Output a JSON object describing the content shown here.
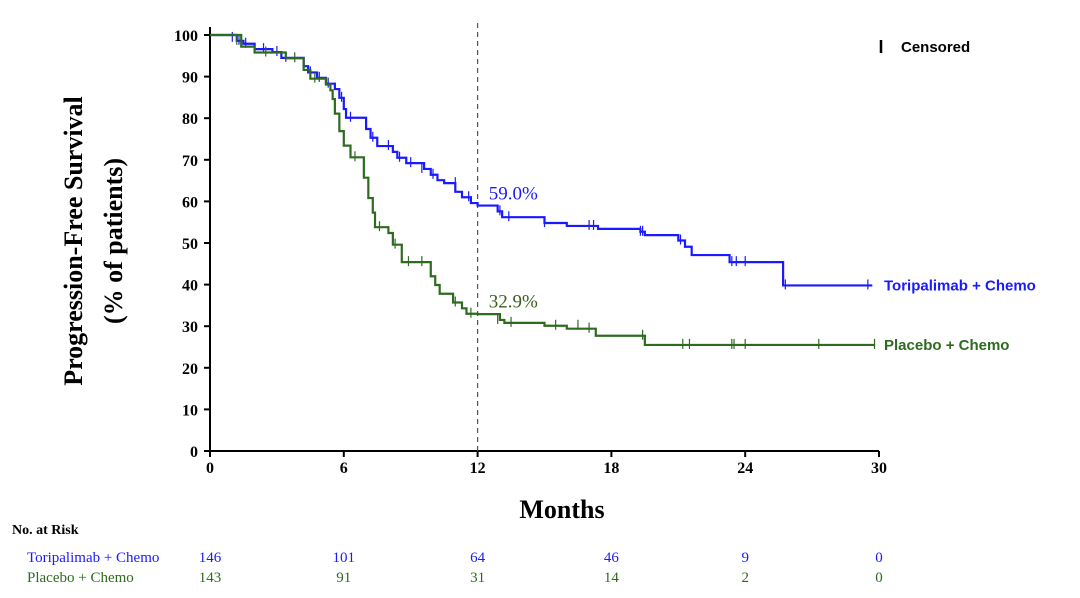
{
  "chart_data": {
    "type": "line",
    "title": "",
    "xlabel": "Months",
    "ylabel_line1": "Progression-Free Survival",
    "ylabel_line2": "(% of patients)",
    "xlim": [
      0,
      30
    ],
    "ylim": [
      0,
      100
    ],
    "xticks": [
      "0",
      "6",
      "12",
      "18",
      "24",
      "30"
    ],
    "yticks": [
      "0",
      "10",
      "20",
      "30",
      "40",
      "50",
      "60",
      "70",
      "80",
      "90",
      "100"
    ],
    "grid": false,
    "reference_line_x": 12,
    "legend": {
      "position": "top-right",
      "censor_mark": "I",
      "censor_label": "Censored"
    },
    "annotations": [
      {
        "text": "59.0%",
        "x": 12.5,
        "y": 60.5,
        "color": "#1a1aff"
      },
      {
        "text": "32.9%",
        "x": 12.5,
        "y": 34.5,
        "color": "#3a5e1e"
      }
    ],
    "series": [
      {
        "name": "Toripalimab + Chemo",
        "color": "#1a1aff",
        "steps": [
          [
            0,
            100
          ],
          [
            1.2,
            98.6
          ],
          [
            1.5,
            97.9
          ],
          [
            2.0,
            96.6
          ],
          [
            2.8,
            95.9
          ],
          [
            3.2,
            94.5
          ],
          [
            4.2,
            92.5
          ],
          [
            4.4,
            91.0
          ],
          [
            4.8,
            89.7
          ],
          [
            5.2,
            88.3
          ],
          [
            5.6,
            87.0
          ],
          [
            5.8,
            84.9
          ],
          [
            6.0,
            82.2
          ],
          [
            6.1,
            80.1
          ],
          [
            7.0,
            77.4
          ],
          [
            7.2,
            75.3
          ],
          [
            7.5,
            73.3
          ],
          [
            8.2,
            71.9
          ],
          [
            8.4,
            70.5
          ],
          [
            8.8,
            69.2
          ],
          [
            9.6,
            67.8
          ],
          [
            9.9,
            66.4
          ],
          [
            10.2,
            65.1
          ],
          [
            10.5,
            64.4
          ],
          [
            11.0,
            62.3
          ],
          [
            11.3,
            61.0
          ],
          [
            11.7,
            59.6
          ],
          [
            12.0,
            59.0
          ],
          [
            12.9,
            57.6
          ],
          [
            13.1,
            56.2
          ],
          [
            15.0,
            54.8
          ],
          [
            16.0,
            54.1
          ],
          [
            17.4,
            53.4
          ],
          [
            19.3,
            52.7
          ],
          [
            19.5,
            51.9
          ],
          [
            21.0,
            50.6
          ],
          [
            21.3,
            49.1
          ],
          [
            21.6,
            47.1
          ],
          [
            23.3,
            45.4
          ],
          [
            25.7,
            39.8
          ],
          [
            29.7,
            39.8
          ]
        ],
        "censored": [
          [
            1.0,
            99.3
          ],
          [
            1.3,
            98.6
          ],
          [
            1.6,
            97.9
          ],
          [
            2.4,
            96.6
          ],
          [
            3.0,
            95.9
          ],
          [
            3.4,
            94.5
          ],
          [
            4.5,
            91.0
          ],
          [
            4.9,
            89.7
          ],
          [
            5.3,
            88.3
          ],
          [
            5.9,
            84.9
          ],
          [
            6.3,
            80.1
          ],
          [
            7.3,
            75.3
          ],
          [
            8.0,
            73.3
          ],
          [
            8.5,
            70.5
          ],
          [
            9.0,
            69.2
          ],
          [
            9.5,
            67.8
          ],
          [
            10.0,
            66.4
          ],
          [
            11.0,
            64.4
          ],
          [
            11.6,
            61.0
          ],
          [
            13.0,
            57.6
          ],
          [
            13.4,
            56.2
          ],
          [
            15.0,
            54.8
          ],
          [
            17.0,
            54.1
          ],
          [
            17.2,
            54.1
          ],
          [
            19.3,
            52.7
          ],
          [
            19.4,
            52.7
          ],
          [
            21.1,
            50.6
          ],
          [
            23.4,
            45.4
          ],
          [
            23.6,
            45.4
          ],
          [
            24.0,
            45.4
          ],
          [
            25.8,
            39.8
          ],
          [
            29.5,
            39.8
          ]
        ],
        "risk": [
          "146",
          "101",
          "64",
          "46",
          "9",
          "0"
        ]
      },
      {
        "name": "Placebo + Chemo",
        "color": "#2e6b1f",
        "steps": [
          [
            0,
            100
          ],
          [
            1.4,
            97.2
          ],
          [
            2.0,
            95.8
          ],
          [
            3.4,
            94.4
          ],
          [
            4.2,
            91.6
          ],
          [
            4.5,
            89.5
          ],
          [
            5.2,
            88.1
          ],
          [
            5.4,
            86.7
          ],
          [
            5.5,
            84.6
          ],
          [
            5.6,
            81.1
          ],
          [
            5.8,
            76.9
          ],
          [
            6.0,
            73.4
          ],
          [
            6.3,
            70.6
          ],
          [
            6.9,
            65.7
          ],
          [
            7.1,
            60.8
          ],
          [
            7.3,
            57.3
          ],
          [
            7.4,
            53.8
          ],
          [
            8.0,
            52.4
          ],
          [
            8.2,
            49.6
          ],
          [
            8.6,
            45.4
          ],
          [
            9.0,
            45.4
          ],
          [
            9.9,
            42.0
          ],
          [
            10.1,
            39.9
          ],
          [
            10.3,
            37.8
          ],
          [
            10.9,
            35.7
          ],
          [
            11.3,
            34.3
          ],
          [
            11.5,
            33.0
          ],
          [
            12.0,
            32.9
          ],
          [
            13.0,
            31.5
          ],
          [
            13.2,
            30.8
          ],
          [
            15.0,
            30.1
          ],
          [
            16.0,
            29.4
          ],
          [
            17.3,
            27.7
          ],
          [
            19.5,
            25.5
          ],
          [
            29.8,
            25.5
          ]
        ],
        "censored": [
          [
            1.2,
            98.6
          ],
          [
            2.5,
            95.8
          ],
          [
            3.8,
            94.4
          ],
          [
            4.7,
            89.5
          ],
          [
            6.5,
            70.6
          ],
          [
            7.6,
            53.8
          ],
          [
            8.3,
            49.6
          ],
          [
            8.9,
            45.4
          ],
          [
            9.5,
            45.4
          ],
          [
            11.0,
            35.7
          ],
          [
            11.7,
            33.0
          ],
          [
            12.9,
            31.5
          ],
          [
            13.5,
            30.8
          ],
          [
            15.5,
            30.1
          ],
          [
            16.5,
            30.1
          ],
          [
            17.0,
            29.4
          ],
          [
            19.4,
            27.7
          ],
          [
            21.2,
            25.5
          ],
          [
            21.5,
            25.5
          ],
          [
            23.4,
            25.5
          ],
          [
            23.5,
            25.5
          ],
          [
            24.0,
            25.5
          ],
          [
            27.3,
            25.5
          ],
          [
            29.8,
            25.5
          ]
        ],
        "risk": [
          "143",
          "91",
          "31",
          "14",
          "2",
          "0"
        ]
      }
    ],
    "risk_table": {
      "title": "No. at Risk",
      "times": [
        0,
        6,
        12,
        18,
        24,
        30
      ]
    }
  }
}
